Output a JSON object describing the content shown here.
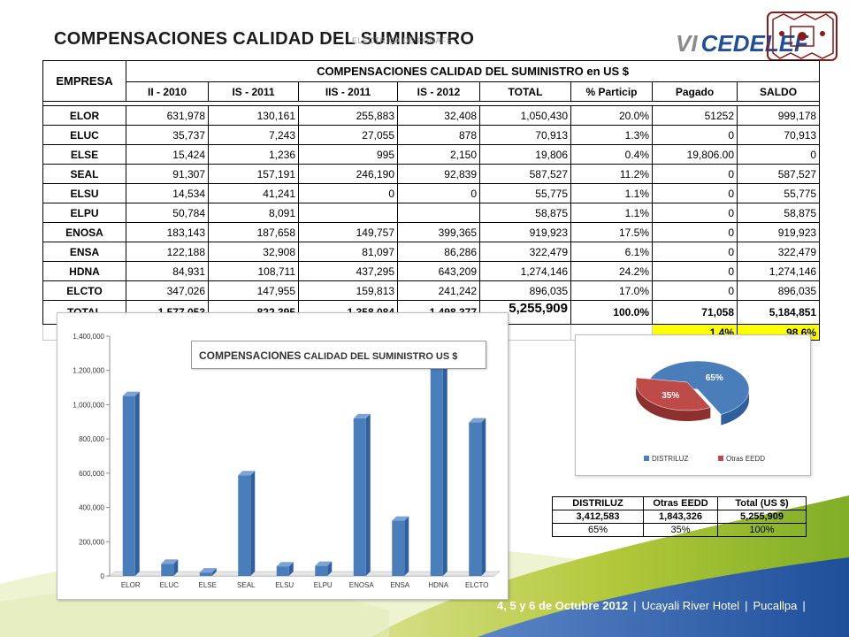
{
  "slide_title": "COMPENSACIONES CALIDAD DEL SUMINISTRO",
  "header_sub": "ELÉCTRICA DE FONAFE",
  "logo": {
    "vi": "VI",
    "name": "CEDELEF"
  },
  "main_table": {
    "empresa_header": "EMPRESA",
    "group_header": "COMPENSACIONES CALIDAD DEL SUMINISTRO en US $",
    "columns": [
      "II - 2010",
      "IS - 2011",
      "IIS - 2011",
      "IS - 2012",
      "TOTAL",
      "% Particip",
      "Pagado",
      "SALDO"
    ],
    "rows": [
      {
        "empresa": "ELOR",
        "c1": "631,978",
        "c2": "130,161",
        "c3": "255,883",
        "c4": "32,408",
        "total": "1,050,430",
        "pct": "20.0%",
        "pagado": "51252",
        "saldo": "999,178"
      },
      {
        "empresa": "ELUC",
        "c1": "35,737",
        "c2": "7,243",
        "c3": "27,055",
        "c4": "878",
        "total": "70,913",
        "pct": "1.3%",
        "pagado": "0",
        "saldo": "70,913"
      },
      {
        "empresa": "ELSE",
        "c1": "15,424",
        "c2": "1,236",
        "c3": "995",
        "c4": "2,150",
        "total": "19,806",
        "pct": "0.4%",
        "pagado": "19,806.00",
        "saldo": "0"
      },
      {
        "empresa": "SEAL",
        "c1": "91,307",
        "c2": "157,191",
        "c3": "246,190",
        "c4": "92,839",
        "total": "587,527",
        "pct": "11.2%",
        "pagado": "0",
        "saldo": "587,527"
      },
      {
        "empresa": "ELSU",
        "c1": "14,534",
        "c2": "41,241",
        "c3": "0",
        "c4": "0",
        "total": "55,775",
        "pct": "1.1%",
        "pagado": "0",
        "saldo": "55,775"
      },
      {
        "empresa": "ELPU",
        "c1": "50,784",
        "c2": "8,091",
        "c3": "",
        "c4": "",
        "total": "58,875",
        "pct": "1.1%",
        "pagado": "0",
        "saldo": "58,875"
      },
      {
        "empresa": "ENOSA",
        "c1": "183,143",
        "c2": "187,658",
        "c3": "149,757",
        "c4": "399,365",
        "total": "919,923",
        "pct": "17.5%",
        "pagado": "0",
        "saldo": "919,923"
      },
      {
        "empresa": "ENSA",
        "c1": "122,188",
        "c2": "32,908",
        "c3": "81,097",
        "c4": "86,286",
        "total": "322,479",
        "pct": "6.1%",
        "pagado": "0",
        "saldo": "322,479"
      },
      {
        "empresa": "HDNA",
        "c1": "84,931",
        "c2": "108,711",
        "c3": "437,295",
        "c4": "643,209",
        "total": "1,274,146",
        "pct": "24.2%",
        "pagado": "0",
        "saldo": "1,274,146"
      },
      {
        "empresa": "ELCTO",
        "c1": "347,026",
        "c2": "147,955",
        "c3": "159,813",
        "c4": "241,242",
        "total": "896,035",
        "pct": "17.0%",
        "pagado": "0",
        "saldo": "896,035"
      }
    ],
    "total_row": {
      "empresa": "TOTAL",
      "c1": "1,577,053",
      "c2": "822,395",
      "c3": "1,358,084",
      "c4": "1,498,377",
      "total": "5,255,909",
      "pct": "100.0%",
      "pagado": "71,058",
      "saldo": "5,184,851"
    },
    "pct_row": {
      "pagado_pct": "1.4%",
      "saldo_pct": "98.6%"
    }
  },
  "chart_data": [
    {
      "type": "bar",
      "title": "COMPENSACIONES CALIDAD DEL SUMINISTRO US $",
      "title_parts": {
        "a": "COMPENSACIONES",
        "b": " CALIDAD DEL SUMINISTRO US $"
      },
      "categories": [
        "ELOR",
        "ELUC",
        "ELSE",
        "SEAL",
        "ELSU",
        "ELPU",
        "ENOSA",
        "ENSA",
        "HDNA",
        "ELCTO"
      ],
      "values": [
        1050430,
        70913,
        19806,
        587527,
        55775,
        58875,
        919923,
        322479,
        1274146,
        896035
      ],
      "ylim": [
        0,
        1400000
      ],
      "yticks": [
        0,
        200000,
        400000,
        600000,
        800000,
        1000000,
        1200000,
        1400000
      ],
      "ytick_labels": [
        "0",
        "200,000",
        "400,000",
        "600,000",
        "800,000",
        "1,000,000",
        "1,200,000",
        "1,400,000"
      ],
      "xlabel": "",
      "ylabel": "",
      "grid": false,
      "color": "#4a7ebb"
    },
    {
      "type": "pie",
      "labels": [
        "DISTRILUZ",
        "Otras EEDD"
      ],
      "values": [
        65,
        35
      ],
      "value_labels": [
        "65%",
        "35%"
      ],
      "colors": [
        "#4a7ebb",
        "#be4b48"
      ],
      "legend": "bottom"
    }
  ],
  "small_table": {
    "headers": [
      "DISTRILUZ",
      "Otras EEDD",
      "Total (US $)"
    ],
    "values": [
      "3,412,583",
      "1,843,326",
      "5,255,909"
    ],
    "percents": [
      "65%",
      "35%",
      "100%"
    ]
  },
  "footer": {
    "date": "4, 5 y 6 de Octubre 2012",
    "venue": "Ucayali River Hotel",
    "city": "Pucallpa"
  }
}
